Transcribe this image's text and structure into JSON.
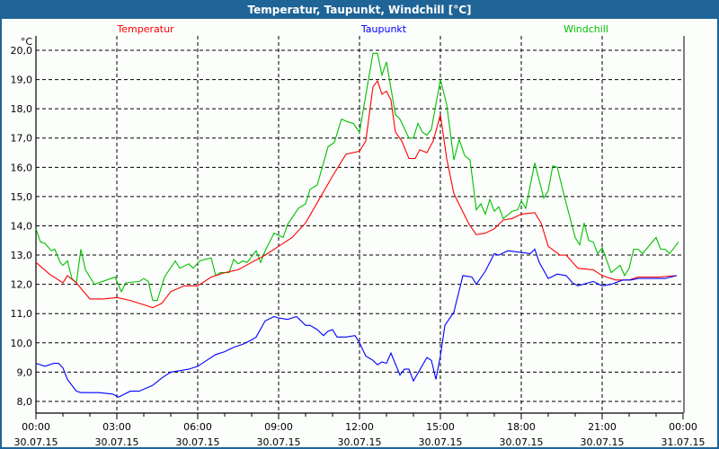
{
  "window": {
    "title": "Temperatur, Taupunkt, Windchill [°C]"
  },
  "chart_data": {
    "type": "line",
    "title": "Temperatur, Taupunkt, Windchill [°C]",
    "ylabel": "°C",
    "ylim": [
      7.7,
      20.5
    ],
    "xlim": [
      "30.07.15 00:00",
      "31.07.15 00:00"
    ],
    "grid": true,
    "legend_placement": "top",
    "yticks": [
      "8,0",
      "9,0",
      "10,0",
      "11,0",
      "12,0",
      "13,0",
      "14,0",
      "15,0",
      "16,0",
      "17,0",
      "18,0",
      "19,0",
      "20,0"
    ],
    "xticks": [
      {
        "time": "00:00",
        "date": "30.07.15"
      },
      {
        "time": "03:00",
        "date": "30.07.15"
      },
      {
        "time": "06:00",
        "date": "30.07.15"
      },
      {
        "time": "09:00",
        "date": "30.07.15"
      },
      {
        "time": "12:00",
        "date": "30.07.15"
      },
      {
        "time": "15:00",
        "date": "30.07.15"
      },
      {
        "time": "18:00",
        "date": "30.07.15"
      },
      {
        "time": "21:00",
        "date": "30.07.15"
      },
      {
        "time": "00:00",
        "date": "31.07.15"
      }
    ],
    "series": [
      {
        "name": "Temperatur",
        "color": "#ff0000",
        "points": [
          [
            "00:00",
            12.75
          ],
          [
            "00:30",
            12.35
          ],
          [
            "01:00",
            12.05
          ],
          [
            "01:10",
            12.3
          ],
          [
            "01:30",
            12.05
          ],
          [
            "02:00",
            11.5
          ],
          [
            "02:30",
            11.5
          ],
          [
            "03:00",
            11.55
          ],
          [
            "03:30",
            11.45
          ],
          [
            "04:00",
            11.3
          ],
          [
            "04:20",
            11.2
          ],
          [
            "04:40",
            11.35
          ],
          [
            "05:00",
            11.75
          ],
          [
            "05:30",
            11.95
          ],
          [
            "06:00",
            11.95
          ],
          [
            "06:30",
            12.25
          ],
          [
            "07:00",
            12.4
          ],
          [
            "07:30",
            12.5
          ],
          [
            "08:00",
            12.75
          ],
          [
            "08:30",
            13.0
          ],
          [
            "09:00",
            13.3
          ],
          [
            "09:30",
            13.6
          ],
          [
            "10:00",
            14.1
          ],
          [
            "10:30",
            14.9
          ],
          [
            "11:00",
            15.7
          ],
          [
            "11:30",
            16.45
          ],
          [
            "12:00",
            16.55
          ],
          [
            "12:14",
            16.9
          ],
          [
            "12:30",
            18.75
          ],
          [
            "12:40",
            18.95
          ],
          [
            "12:50",
            18.5
          ],
          [
            "13:00",
            18.6
          ],
          [
            "13:10",
            18.3
          ],
          [
            "13:20",
            17.2
          ],
          [
            "13:34",
            16.9
          ],
          [
            "13:50",
            16.3
          ],
          [
            "14:04",
            16.3
          ],
          [
            "14:14",
            16.6
          ],
          [
            "14:30",
            16.5
          ],
          [
            "14:44",
            16.9
          ],
          [
            "15:00",
            17.8
          ],
          [
            "15:14",
            16.3
          ],
          [
            "15:30",
            15.1
          ],
          [
            "15:46",
            14.6
          ],
          [
            "16:04",
            14.05
          ],
          [
            "16:20",
            13.7
          ],
          [
            "16:40",
            13.75
          ],
          [
            "17:00",
            13.9
          ],
          [
            "17:20",
            14.2
          ],
          [
            "17:40",
            14.25
          ],
          [
            "18:00",
            14.4
          ],
          [
            "18:30",
            14.45
          ],
          [
            "18:44",
            14.1
          ],
          [
            "19:00",
            13.3
          ],
          [
            "19:26",
            13.0
          ],
          [
            "19:40",
            13.0
          ],
          [
            "20:06",
            12.55
          ],
          [
            "20:40",
            12.5
          ],
          [
            "21:00",
            12.3
          ],
          [
            "21:30",
            12.15
          ],
          [
            "22:00",
            12.15
          ],
          [
            "22:20",
            12.25
          ],
          [
            "23:06",
            12.25
          ],
          [
            "23:46",
            12.3
          ]
        ]
      },
      {
        "name": "Taupunkt",
        "color": "#0000ff",
        "points": [
          [
            "00:00",
            9.3
          ],
          [
            "00:20",
            9.2
          ],
          [
            "00:40",
            9.3
          ],
          [
            "00:50",
            9.3
          ],
          [
            "01:00",
            9.15
          ],
          [
            "01:10",
            8.75
          ],
          [
            "01:30",
            8.35
          ],
          [
            "01:40",
            8.3
          ],
          [
            "02:20",
            8.3
          ],
          [
            "02:50",
            8.25
          ],
          [
            "03:04",
            8.15
          ],
          [
            "03:30",
            8.35
          ],
          [
            "03:50",
            8.35
          ],
          [
            "04:20",
            8.55
          ],
          [
            "04:40",
            8.8
          ],
          [
            "05:00",
            9.0
          ],
          [
            "05:20",
            9.05
          ],
          [
            "05:40",
            9.1
          ],
          [
            "06:00",
            9.2
          ],
          [
            "06:20",
            9.4
          ],
          [
            "06:40",
            9.6
          ],
          [
            "07:00",
            9.7
          ],
          [
            "07:20",
            9.85
          ],
          [
            "07:40",
            9.95
          ],
          [
            "08:00",
            10.1
          ],
          [
            "08:10",
            10.2
          ],
          [
            "08:30",
            10.75
          ],
          [
            "08:50",
            10.9
          ],
          [
            "09:00",
            10.85
          ],
          [
            "09:20",
            10.8
          ],
          [
            "09:40",
            10.9
          ],
          [
            "10:00",
            10.6
          ],
          [
            "10:10",
            10.6
          ],
          [
            "10:26",
            10.45
          ],
          [
            "10:40",
            10.25
          ],
          [
            "10:50",
            10.4
          ],
          [
            "11:00",
            10.45
          ],
          [
            "11:10",
            10.2
          ],
          [
            "11:30",
            10.2
          ],
          [
            "11:50",
            10.25
          ],
          [
            "12:00",
            10.0
          ],
          [
            "12:14",
            9.55
          ],
          [
            "12:30",
            9.4
          ],
          [
            "12:40",
            9.25
          ],
          [
            "12:50",
            9.35
          ],
          [
            "13:00",
            9.3
          ],
          [
            "13:10",
            9.65
          ],
          [
            "13:30",
            8.9
          ],
          [
            "13:40",
            9.1
          ],
          [
            "13:50",
            9.1
          ],
          [
            "14:00",
            8.7
          ],
          [
            "14:30",
            9.5
          ],
          [
            "14:40",
            9.4
          ],
          [
            "14:50",
            8.75
          ],
          [
            "15:00",
            9.55
          ],
          [
            "15:10",
            10.6
          ],
          [
            "15:30",
            11.05
          ],
          [
            "15:50",
            12.3
          ],
          [
            "16:10",
            12.25
          ],
          [
            "16:20",
            12.0
          ],
          [
            "16:40",
            12.45
          ],
          [
            "16:50",
            12.75
          ],
          [
            "17:00",
            13.05
          ],
          [
            "17:10",
            13.0
          ],
          [
            "17:30",
            13.15
          ],
          [
            "18:20",
            13.05
          ],
          [
            "18:30",
            13.2
          ],
          [
            "18:40",
            12.75
          ],
          [
            "19:00",
            12.2
          ],
          [
            "19:20",
            12.35
          ],
          [
            "19:40",
            12.3
          ],
          [
            "19:54",
            12.05
          ],
          [
            "20:06",
            11.95
          ],
          [
            "20:40",
            12.1
          ],
          [
            "21:00",
            11.95
          ],
          [
            "21:20",
            12.0
          ],
          [
            "21:46",
            12.15
          ],
          [
            "22:04",
            12.15
          ],
          [
            "22:20",
            12.2
          ],
          [
            "23:20",
            12.2
          ],
          [
            "23:46",
            12.3
          ]
        ]
      },
      {
        "name": "Windchill",
        "color": "#00c000",
        "points": [
          [
            "00:00",
            13.9
          ],
          [
            "00:10",
            13.45
          ],
          [
            "00:20",
            13.4
          ],
          [
            "00:34",
            13.15
          ],
          [
            "00:42",
            13.2
          ],
          [
            "00:54",
            12.75
          ],
          [
            "01:00",
            12.65
          ],
          [
            "01:10",
            12.8
          ],
          [
            "01:20",
            12.2
          ],
          [
            "01:30",
            12.05
          ],
          [
            "01:40",
            13.2
          ],
          [
            "01:50",
            12.5
          ],
          [
            "02:10",
            12.0
          ],
          [
            "02:56",
            12.25
          ],
          [
            "03:10",
            11.75
          ],
          [
            "03:20",
            12.05
          ],
          [
            "03:50",
            12.1
          ],
          [
            "04:00",
            12.2
          ],
          [
            "04:10",
            12.1
          ],
          [
            "04:20",
            11.45
          ],
          [
            "04:30",
            11.45
          ],
          [
            "04:46",
            12.25
          ],
          [
            "05:10",
            12.8
          ],
          [
            "05:20",
            12.55
          ],
          [
            "05:40",
            12.7
          ],
          [
            "05:50",
            12.55
          ],
          [
            "06:04",
            12.8
          ],
          [
            "06:16",
            12.85
          ],
          [
            "06:30",
            12.9
          ],
          [
            "06:40",
            12.3
          ],
          [
            "06:50",
            12.4
          ],
          [
            "07:10",
            12.4
          ],
          [
            "07:20",
            12.85
          ],
          [
            "07:30",
            12.7
          ],
          [
            "07:40",
            12.8
          ],
          [
            "07:50",
            12.75
          ],
          [
            "08:10",
            13.15
          ],
          [
            "08:20",
            12.75
          ],
          [
            "08:30",
            13.15
          ],
          [
            "08:50",
            13.75
          ],
          [
            "09:10",
            13.6
          ],
          [
            "09:20",
            14.05
          ],
          [
            "09:44",
            14.6
          ],
          [
            "10:00",
            14.75
          ],
          [
            "10:10",
            15.25
          ],
          [
            "10:26",
            15.4
          ],
          [
            "10:50",
            16.7
          ],
          [
            "11:04",
            16.85
          ],
          [
            "11:20",
            17.65
          ],
          [
            "11:34",
            17.55
          ],
          [
            "11:46",
            17.5
          ],
          [
            "12:00",
            17.2
          ],
          [
            "12:16",
            18.65
          ],
          [
            "12:30",
            19.9
          ],
          [
            "12:40",
            19.9
          ],
          [
            "12:50",
            19.15
          ],
          [
            "13:00",
            19.6
          ],
          [
            "13:20",
            17.8
          ],
          [
            "13:30",
            17.65
          ],
          [
            "13:50",
            17.0
          ],
          [
            "14:00",
            17.0
          ],
          [
            "14:10",
            17.5
          ],
          [
            "14:20",
            17.2
          ],
          [
            "14:30",
            17.1
          ],
          [
            "14:40",
            17.3
          ],
          [
            "15:00",
            19.0
          ],
          [
            "15:14",
            18.15
          ],
          [
            "15:30",
            16.25
          ],
          [
            "15:42",
            16.95
          ],
          [
            "15:54",
            16.4
          ],
          [
            "16:06",
            16.25
          ],
          [
            "16:20",
            14.55
          ],
          [
            "16:30",
            14.75
          ],
          [
            "16:40",
            14.4
          ],
          [
            "16:50",
            14.9
          ],
          [
            "17:00",
            14.5
          ],
          [
            "17:10",
            14.65
          ],
          [
            "17:20",
            14.25
          ],
          [
            "17:40",
            14.5
          ],
          [
            "17:52",
            14.55
          ],
          [
            "18:00",
            14.85
          ],
          [
            "18:10",
            14.6
          ],
          [
            "18:30",
            16.15
          ],
          [
            "18:50",
            14.95
          ],
          [
            "19:00",
            15.2
          ],
          [
            "19:10",
            16.05
          ],
          [
            "19:20",
            16.0
          ],
          [
            "19:36",
            15.0
          ],
          [
            "20:00",
            13.6
          ],
          [
            "20:10",
            13.35
          ],
          [
            "20:20",
            14.1
          ],
          [
            "20:30",
            13.5
          ],
          [
            "20:40",
            13.45
          ],
          [
            "20:50",
            13.05
          ],
          [
            "21:00",
            13.25
          ],
          [
            "21:20",
            12.4
          ],
          [
            "21:40",
            12.65
          ],
          [
            "21:50",
            12.3
          ],
          [
            "22:00",
            12.55
          ],
          [
            "22:10",
            13.2
          ],
          [
            "22:20",
            13.2
          ],
          [
            "22:30",
            13.05
          ],
          [
            "23:00",
            13.6
          ],
          [
            "23:10",
            13.2
          ],
          [
            "23:20",
            13.2
          ],
          [
            "23:30",
            13.05
          ],
          [
            "23:50",
            13.45
          ]
        ]
      }
    ]
  }
}
